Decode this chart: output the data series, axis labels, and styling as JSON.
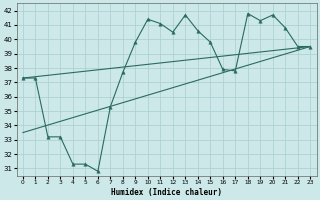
{
  "xlabel": "Humidex (Indice chaleur)",
  "bg_color": "#cce8e8",
  "grid_color": "#aacece",
  "line_color": "#2a6b5e",
  "xlim": [
    -0.5,
    23.5
  ],
  "ylim": [
    30.5,
    42.5
  ],
  "yticks": [
    31,
    32,
    33,
    34,
    35,
    36,
    37,
    38,
    39,
    40,
    41,
    42
  ],
  "xticks": [
    0,
    1,
    2,
    3,
    4,
    5,
    6,
    7,
    8,
    9,
    10,
    11,
    12,
    13,
    14,
    15,
    16,
    17,
    18,
    19,
    20,
    21,
    22,
    23
  ],
  "line1_x": [
    0,
    1,
    2,
    3,
    4,
    5,
    6,
    7,
    8,
    9,
    10,
    11,
    12,
    13,
    14,
    15,
    16,
    17,
    18,
    19,
    20,
    21,
    22,
    23
  ],
  "line1_y": [
    37.3,
    37.3,
    33.2,
    33.2,
    31.3,
    31.3,
    30.8,
    35.3,
    37.7,
    39.8,
    41.4,
    41.1,
    40.5,
    41.7,
    40.6,
    39.8,
    37.9,
    37.8,
    41.8,
    41.3,
    41.7,
    40.8,
    39.5,
    39.5
  ],
  "line2_x": [
    0,
    23
  ],
  "line2_y": [
    37.3,
    39.5
  ],
  "line3_x": [
    0,
    23
  ],
  "line3_y": [
    33.5,
    39.5
  ],
  "markersize": 2.5
}
